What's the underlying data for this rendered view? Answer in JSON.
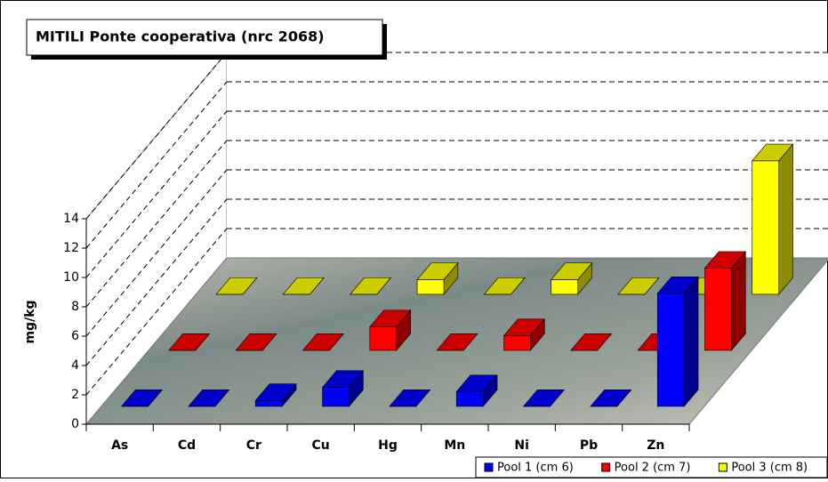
{
  "chart_data": {
    "type": "bar3d",
    "title": "MITILI Ponte cooperativa (nrc 2068)",
    "ylabel": "mg/kg",
    "categories": [
      "As",
      "Cd",
      "Cr",
      "Cu",
      "Hg",
      "Mn",
      "Ni",
      "Pb",
      "Zn"
    ],
    "series": [
      {
        "name": "Pool 1 (cm 6)",
        "color": "#0000ff",
        "values": [
          0,
          0,
          0.4,
          1.3,
          0,
          1.0,
          0,
          0,
          7.7
        ]
      },
      {
        "name": "Pool 2 (cm 7)",
        "color": "#ff0000",
        "values": [
          0,
          0,
          0,
          1.6,
          0,
          1.0,
          0,
          0,
          5.6
        ]
      },
      {
        "name": "Pool 3 (cm 8)",
        "color": "#ffff00",
        "values": [
          0,
          0,
          0,
          1.0,
          0,
          1.0,
          0,
          0,
          9.1
        ]
      }
    ],
    "ylim": [
      0,
      14
    ],
    "yticks": [
      0,
      2,
      4,
      6,
      8,
      10,
      12,
      14
    ],
    "grid": true
  }
}
